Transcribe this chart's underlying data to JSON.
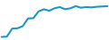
{
  "x": [
    0,
    1,
    2,
    3,
    4,
    5,
    6,
    7,
    8,
    9,
    10,
    11,
    12,
    13,
    14,
    15,
    16,
    17,
    18,
    19,
    20
  ],
  "y": [
    3.5,
    3.6,
    6.2,
    6.3,
    7.0,
    9.5,
    9.6,
    11.8,
    12.5,
    12.0,
    12.8,
    13.2,
    12.5,
    12.8,
    13.5,
    13.0,
    13.2,
    13.1,
    13.3,
    13.4,
    13.5
  ],
  "line_color": "#2196c4",
  "linewidth": 1.5,
  "background_color": "#ffffff",
  "ylim": [
    2.5,
    15.5
  ],
  "xlim": [
    -0.3,
    20.3
  ]
}
